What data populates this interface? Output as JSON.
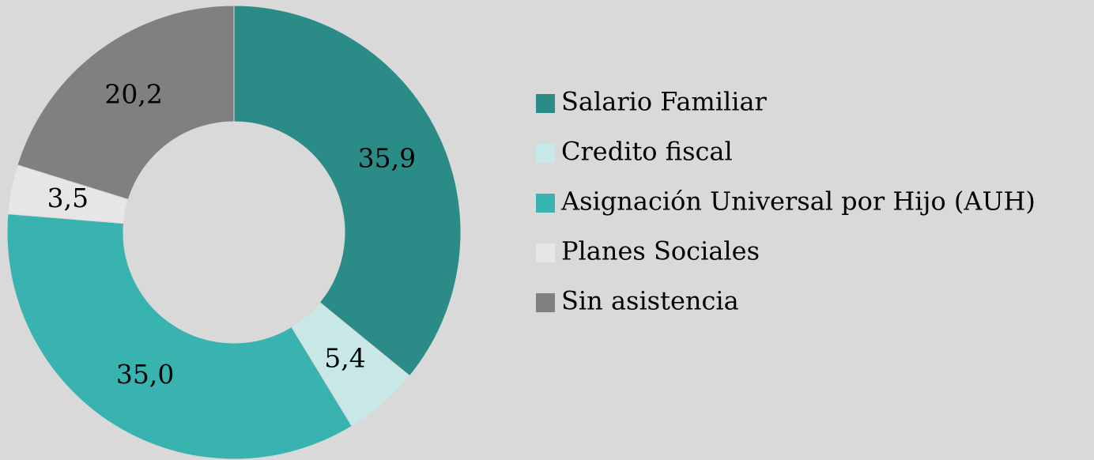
{
  "chart_data": {
    "type": "donut",
    "categories": [
      "Salario Familiar",
      "Credito fiscal",
      "Asignación Universal por Hijo (AUH)",
      "Planes Sociales",
      "Sin asistencia"
    ],
    "values": [
      35.9,
      5.4,
      35.0,
      3.5,
      20.2
    ],
    "value_labels": [
      "35,9",
      "5,4",
      "35,0",
      "3,5",
      "20,2"
    ],
    "colors": [
      "#2a8b87",
      "#c8e8e8",
      "#38b3b0",
      "#e6e6e6",
      "#808080"
    ],
    "legend": "right"
  }
}
